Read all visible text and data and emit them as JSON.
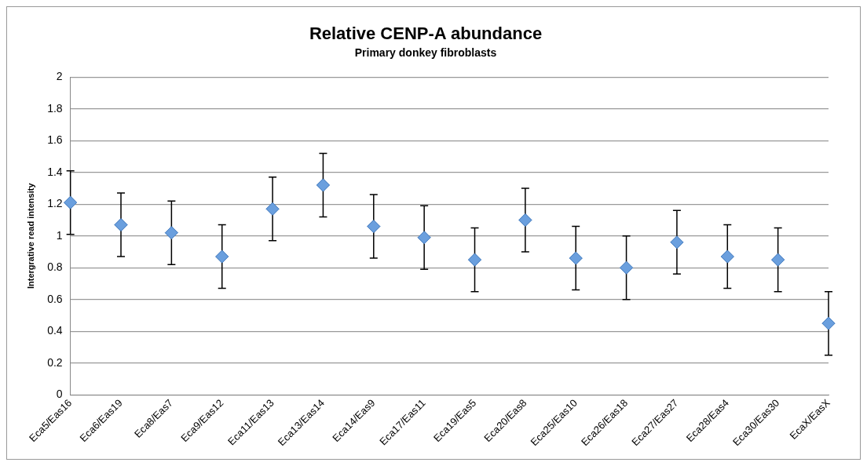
{
  "chart_data": {
    "type": "scatter",
    "title": "Relative CENP-A abundance",
    "subtitle": "Primary donkey fibroblasts",
    "ylabel": "Intergrative read intensity",
    "categories": [
      "Eca5/Eas16",
      "Eca6/Eas19",
      "Eca8/Eas7",
      "Eca9/Eas12",
      "Eca11/Eas13",
      "Eca13/Eas14",
      "Eca14/Eas9",
      "Eca17/Eas11",
      "Eca19/Eas5",
      "Eca20/Eas8",
      "Eca25/Eas10",
      "Eca26/Eas18",
      "Eca27/Eas27",
      "Eca28/Eas4",
      "Eca30/Eas30",
      "EcaX/EasX"
    ],
    "values": [
      1.21,
      1.07,
      1.02,
      0.87,
      1.17,
      1.32,
      1.06,
      0.99,
      0.85,
      1.1,
      0.86,
      0.8,
      0.96,
      0.87,
      0.85,
      0.45
    ],
    "errors": [
      0.2,
      0.2,
      0.2,
      0.2,
      0.2,
      0.2,
      0.2,
      0.2,
      0.2,
      0.2,
      0.2,
      0.2,
      0.2,
      0.2,
      0.2,
      0.2
    ],
    "color": "#6a9fde",
    "marker": "diamond",
    "ylim": [
      0,
      2
    ],
    "yticks": [
      0,
      0.2,
      0.4,
      0.6,
      0.8,
      1,
      1.2,
      1.4,
      1.6,
      1.8,
      2
    ],
    "grid": "y",
    "legend": false
  }
}
